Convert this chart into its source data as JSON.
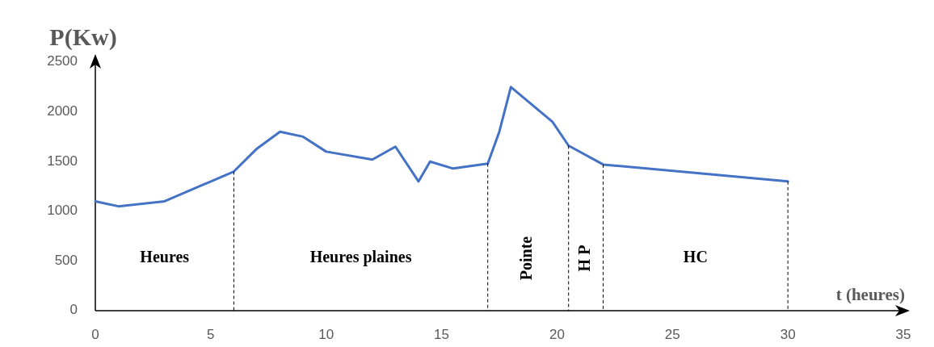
{
  "chart_data": {
    "type": "line",
    "xlabel": "t (heures)",
    "ylabel": "P(Kw)",
    "x": [
      0,
      1,
      3,
      6,
      7,
      8,
      9,
      10,
      12,
      13,
      14,
      14.5,
      15.5,
      17,
      17.5,
      18,
      19.8,
      20.5,
      22,
      30
    ],
    "series": [
      {
        "color": "#4472c4",
        "values": [
          1100,
          1050,
          1100,
          1400,
          1630,
          1800,
          1750,
          1600,
          1520,
          1650,
          1300,
          1500,
          1430,
          1480,
          1800,
          2250,
          1900,
          1660,
          1470,
          1300
        ]
      },
      {
        "color": "#000000",
        "line_style": "dashed",
        "x": [
          6,
          6
        ],
        "values": [
          0,
          1400
        ]
      },
      {
        "color": "#000000",
        "line_style": "dashed",
        "x": [
          17,
          17
        ],
        "values": [
          0,
          1480
        ]
      },
      {
        "color": "#000000",
        "line_style": "dashed",
        "x": [
          20.5,
          20.5
        ],
        "values": [
          0,
          1660
        ]
      },
      {
        "color": "#000000",
        "line_style": "dashed",
        "x": [
          22,
          22
        ],
        "values": [
          0,
          1470
        ]
      },
      {
        "color": "#000000",
        "line_style": "dashed",
        "x": [
          30,
          30
        ],
        "values": [
          0,
          1300
        ]
      }
    ],
    "xlim": [
      0,
      35
    ],
    "xticks": [
      0,
      5,
      10,
      15,
      20,
      25,
      30,
      35
    ],
    "ylim": [
      0,
      2500
    ],
    "yticks": [
      0,
      500,
      1000,
      1500,
      2000,
      2500
    ],
    "marker": "none",
    "line_style": "solid",
    "annotations": [
      "Heures",
      "Heures plaines",
      "Pointe",
      "H P",
      "HC"
    ]
  }
}
